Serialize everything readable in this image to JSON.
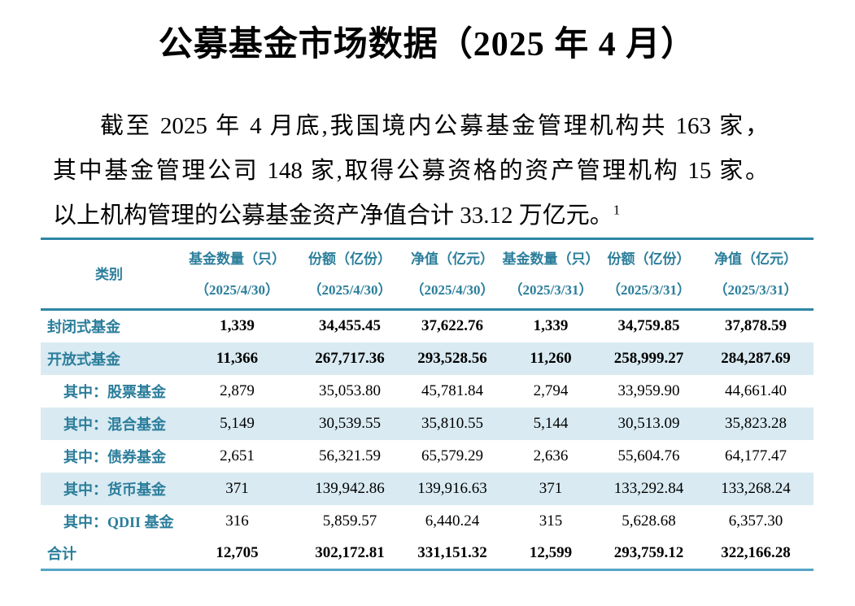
{
  "title": "公募基金市场数据（2025 年 4 月）",
  "intro": {
    "line1": "截至 2025 年 4 月底,我国境内公募基金管理机构共 163 家，",
    "line2": "其中基金管理公司 148 家,取得公募资格的资产管理机构 15 家。",
    "line3": "以上机构管理的公募基金资产净值合计 33.12 万亿元。",
    "footnote_ref": "1"
  },
  "table": {
    "headers": [
      {
        "label": "类别",
        "sub": ""
      },
      {
        "label": "基金数量（只）",
        "sub": "（2025/4/30）"
      },
      {
        "label": "份额（亿份）",
        "sub": "（2025/4/30）"
      },
      {
        "label": "净值（亿元）",
        "sub": "（2025/4/30）"
      },
      {
        "label": "基金数量（只）",
        "sub": "（2025/3/31）"
      },
      {
        "label": "份额（亿份）",
        "sub": "（2025/3/31）"
      },
      {
        "label": "净值（亿元）",
        "sub": "（2025/3/31）"
      }
    ],
    "rows": [
      {
        "label": "封闭式基金",
        "indent": false,
        "bold": true,
        "shaded": false,
        "values": [
          "1,339",
          "34,455.45",
          "37,622.76",
          "1,339",
          "34,759.85",
          "37,878.59"
        ]
      },
      {
        "label": "开放式基金",
        "indent": false,
        "bold": true,
        "shaded": true,
        "values": [
          "11,366",
          "267,717.36",
          "293,528.56",
          "11,260",
          "258,999.27",
          "284,287.69"
        ]
      },
      {
        "label": "其中：股票基金",
        "indent": true,
        "bold": false,
        "shaded": false,
        "values": [
          "2,879",
          "35,053.80",
          "45,781.84",
          "2,794",
          "33,959.90",
          "44,661.40"
        ]
      },
      {
        "label": "其中：混合基金",
        "indent": true,
        "bold": false,
        "shaded": true,
        "values": [
          "5,149",
          "30,539.55",
          "35,810.55",
          "5,144",
          "30,513.09",
          "35,823.28"
        ]
      },
      {
        "label": "其中：债券基金",
        "indent": true,
        "bold": false,
        "shaded": false,
        "values": [
          "2,651",
          "56,321.59",
          "65,579.29",
          "2,636",
          "55,604.76",
          "64,177.47"
        ]
      },
      {
        "label": "其中：货币基金",
        "indent": true,
        "bold": false,
        "shaded": true,
        "values": [
          "371",
          "139,942.86",
          "139,916.63",
          "371",
          "133,292.84",
          "133,268.24"
        ]
      },
      {
        "label": "其中：QDII 基金",
        "indent": true,
        "bold": false,
        "shaded": false,
        "values": [
          "316",
          "5,859.57",
          "6,440.24",
          "315",
          "5,628.68",
          "6,357.30"
        ]
      },
      {
        "label": "合计",
        "indent": false,
        "bold": true,
        "shaded": false,
        "values": [
          "12,705",
          "302,172.81",
          "331,151.32",
          "12,599",
          "293,759.12",
          "322,166.28"
        ]
      }
    ]
  },
  "colors": {
    "accent_teal": "#2B7E9B",
    "header_rule": "#2E86A4",
    "bottom_rule": "#55A5C4",
    "row_shade": "#D9EAF2",
    "text": "#000000"
  }
}
